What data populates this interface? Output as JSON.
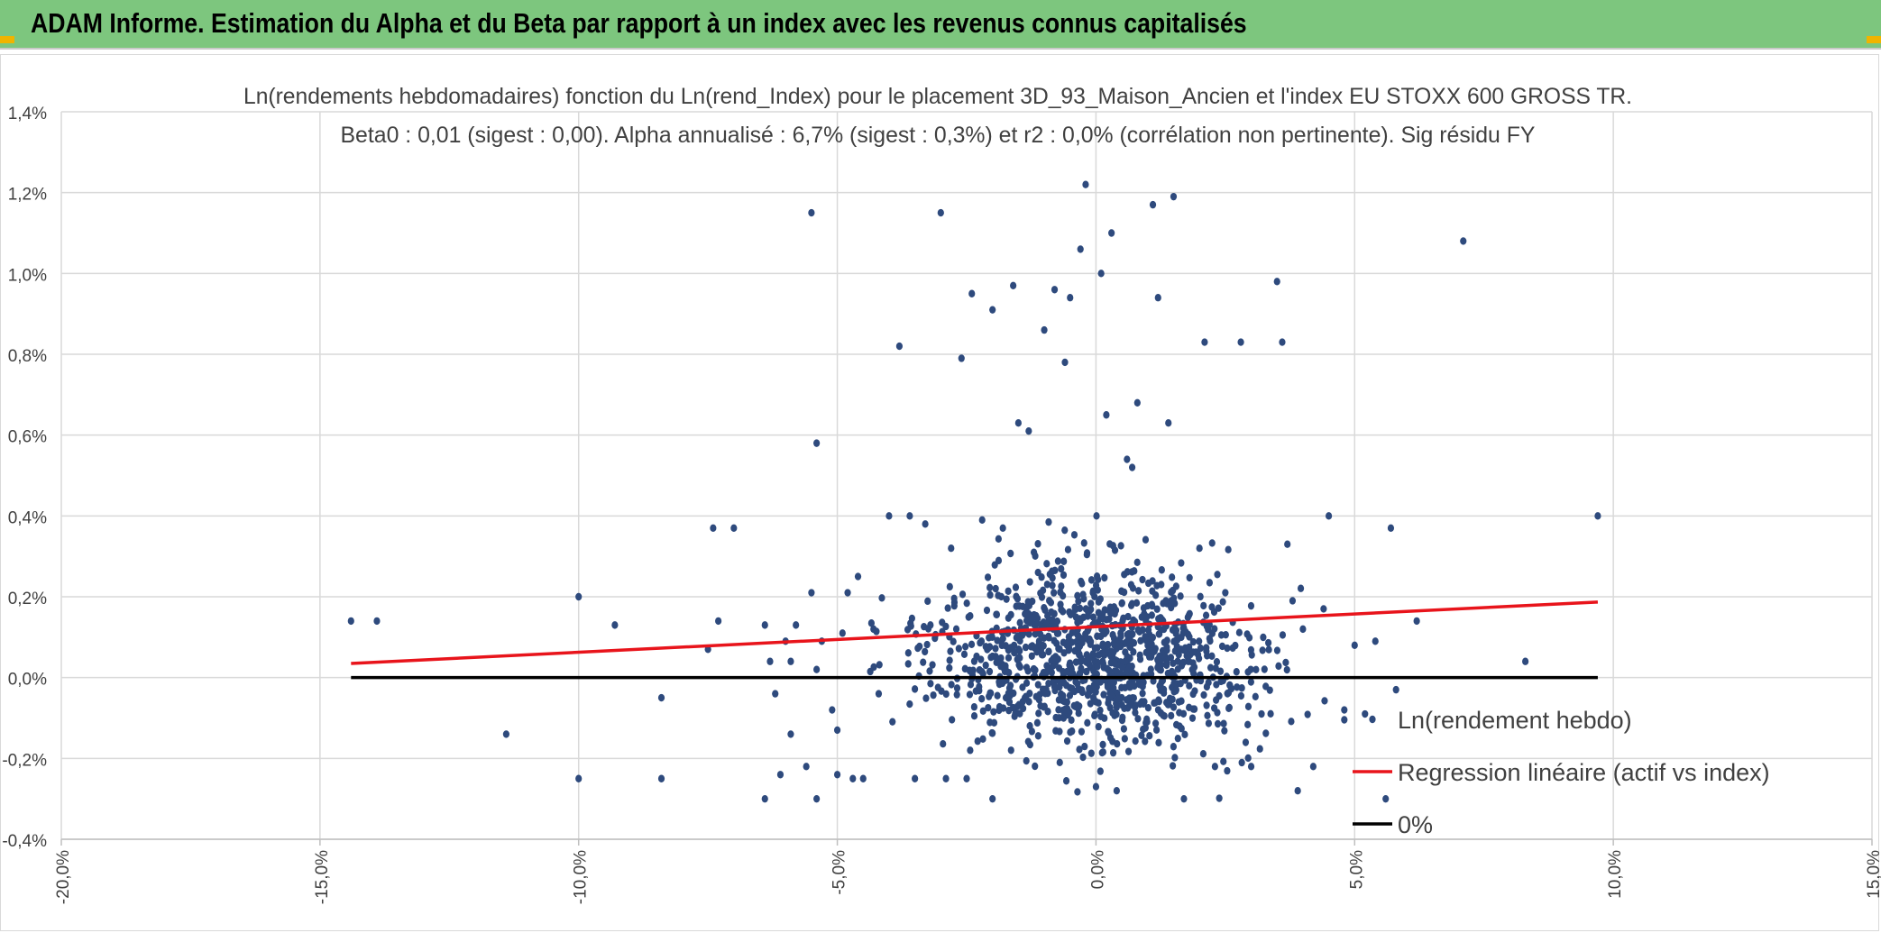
{
  "header": {
    "title": "ADAM Informe. Estimation du Alpha et du Beta par rapport à un index avec les revenus connus capitalisés"
  },
  "colors": {
    "banner": "#7dc67e",
    "points": "#2e4a7d",
    "regression": "#e8141b",
    "zero_line": "#000000",
    "grid": "#d9d9d9",
    "corner_accent": "#f0b400"
  },
  "chart_data": {
    "type": "scatter",
    "title": "Ln(rendements hebdomadaires) fonction du Ln(rend_Index) pour le placement 3D_93_Maison_Ancien et l'index EU STOXX 600 GROSS TR.",
    "subtitle": "Beta0 : 0,01 (sigest : 0,00). Alpha annualisé : 6,7% (sigest : 0,3%) et r2 : 0,0% (corrélation non pertinente). Sig résidu FY",
    "xlabel": "",
    "ylabel": "",
    "xlim": [
      -0.2,
      0.15
    ],
    "ylim": [
      -0.004,
      0.014
    ],
    "x_ticks": [
      -0.2,
      -0.15,
      -0.1,
      -0.05,
      0.0,
      0.05,
      0.1,
      0.15
    ],
    "x_tick_labels": [
      "-20,0%",
      "-15,0%",
      "-10,0%",
      "-5,0%",
      "0,0%",
      "5,0%",
      "10,0%",
      "15,0%"
    ],
    "y_ticks": [
      -0.004,
      -0.002,
      0.0,
      0.002,
      0.004,
      0.006,
      0.008,
      0.01,
      0.012,
      0.014
    ],
    "y_tick_labels": [
      "-0,4%",
      "-0,2%",
      "0,0%",
      "0,2%",
      "0,4%",
      "0,6%",
      "0,8%",
      "1,0%",
      "1,2%",
      "1,4%"
    ],
    "grid": true,
    "legend_position": "bottom-right",
    "series": [
      {
        "name": "Ln(rendement hebdo)",
        "kind": "scatter",
        "color": "#2e4a7d",
        "points_note": "",
        "x": [
          -0.144,
          -0.139,
          -0.114,
          -0.1,
          -0.1,
          -0.093,
          -0.084,
          -0.084,
          -0.074,
          -0.073,
          -0.075,
          -0.07,
          -0.064,
          -0.064,
          -0.062,
          -0.063,
          -0.061,
          -0.06,
          -0.059,
          -0.059,
          -0.058,
          -0.056,
          -0.055,
          -0.055,
          -0.054,
          -0.054,
          -0.054,
          -0.053,
          -0.051,
          -0.05,
          -0.05,
          -0.049,
          -0.048,
          -0.047,
          -0.046,
          -0.045,
          -0.043,
          -0.042,
          -0.04,
          -0.038,
          -0.036,
          -0.035,
          -0.033,
          -0.032,
          -0.03,
          -0.029,
          -0.028,
          -0.027,
          -0.026,
          -0.025,
          -0.024,
          -0.022,
          -0.02,
          -0.02,
          -0.018,
          -0.016,
          -0.015,
          -0.014,
          -0.013,
          -0.012,
          -0.011,
          -0.01,
          -0.008,
          -0.007,
          -0.006,
          -0.005,
          -0.003,
          -0.002,
          0.0,
          0.001,
          0.002,
          0.003,
          0.004,
          0.006,
          0.007,
          0.008,
          0.01,
          0.011,
          0.012,
          0.014,
          0.015,
          0.017,
          0.018,
          0.02,
          0.021,
          0.023,
          0.025,
          0.028,
          0.03,
          0.032,
          0.035,
          0.036,
          0.037,
          0.038,
          0.039,
          0.04,
          0.042,
          0.044,
          0.045,
          0.048,
          0.05,
          0.052,
          0.054,
          0.056,
          0.057,
          0.058,
          0.062,
          0.071,
          0.083,
          0.097
        ],
        "y": [
          0.0014,
          0.0014,
          -0.0014,
          -0.0025,
          0.002,
          0.0013,
          -0.0025,
          -0.0005,
          0.0037,
          0.0014,
          0.0007,
          0.0037,
          -0.003,
          0.0013,
          -0.0004,
          0.0004,
          -0.0024,
          0.0009,
          -0.0014,
          0.0004,
          0.0013,
          -0.0022,
          0.0021,
          0.0115,
          -0.003,
          0.0058,
          0.0002,
          0.0009,
          -0.0008,
          -0.0024,
          -0.0013,
          0.0011,
          0.0021,
          -0.0025,
          0.0025,
          -0.0025,
          0.0012,
          -0.0004,
          0.004,
          0.0082,
          0.004,
          -0.0025,
          0.0038,
          0.0013,
          0.0115,
          -0.0025,
          0.0032,
          0.0012,
          0.0079,
          -0.0025,
          0.0095,
          0.0039,
          -0.003,
          0.0091,
          0.0037,
          0.0097,
          0.0063,
          0.0011,
          0.0061,
          0.0031,
          0.0009,
          0.0086,
          0.0096,
          -0.0021,
          0.0078,
          0.0094,
          0.0106,
          0.0122,
          -0.0027,
          0.01,
          0.0065,
          0.011,
          -0.0028,
          0.0054,
          0.0052,
          0.0068,
          0.0008,
          0.0117,
          0.0094,
          0.0063,
          0.0119,
          -0.003,
          0.0004,
          0.0032,
          0.0083,
          -0.0022,
          0.0021,
          0.0083,
          -0.0022,
          -0.0009,
          0.0098,
          0.0083,
          0.0033,
          0.0019,
          -0.0028,
          0.0012,
          -0.0022,
          0.0017,
          0.004,
          -0.0008,
          0.0008,
          -0.0009,
          0.0009,
          -0.003,
          0.0037,
          -0.0003,
          0.0014,
          0.0108,
          0.0004,
          0.004
        ],
        "cloud_center": [
          0.0,
          0.0005
        ],
        "cloud_note": ""
      },
      {
        "name": "Regression linéaire (actif vs index)",
        "kind": "line",
        "color": "#e8141b",
        "x": [
          -0.144,
          0.097
        ],
        "y": [
          0.00035,
          0.00187
        ]
      },
      {
        "name": "0%",
        "kind": "line",
        "color": "#000000",
        "x": [
          -0.144,
          0.097
        ],
        "y": [
          0.0,
          0.0
        ]
      }
    ]
  }
}
